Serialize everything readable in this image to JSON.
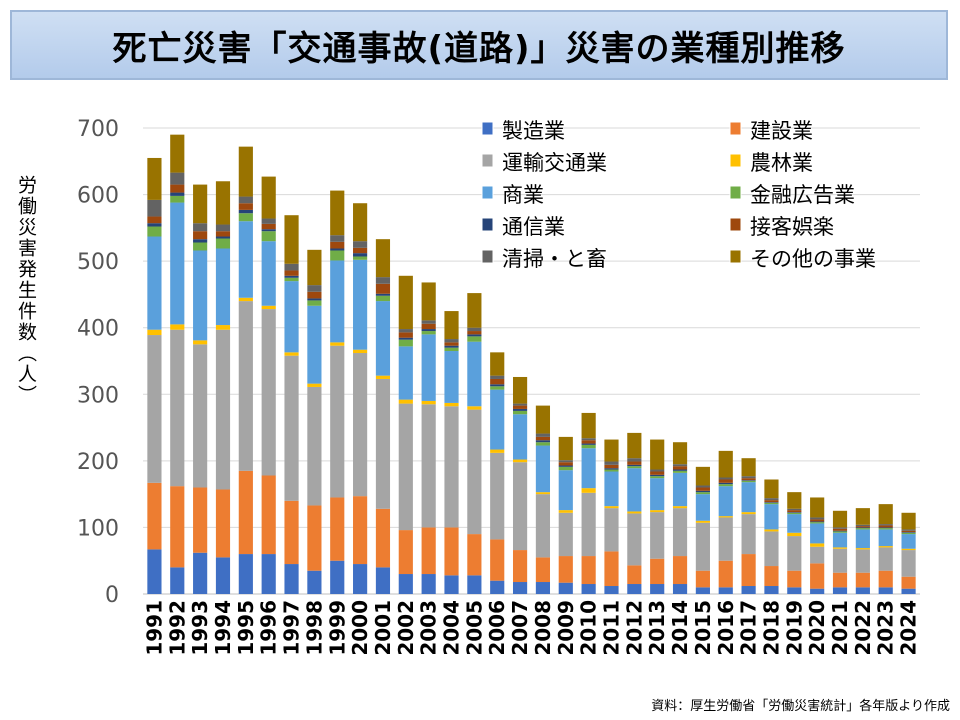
{
  "title": "死亡災害「交通事故(道路)」災害の業種別推移",
  "source_note": "資料：厚生労働省「労働災害統計」各年版より作成",
  "chart_data": {
    "type": "bar",
    "stacked": true,
    "title": "死亡災害「交通事故(道路)」災害の業種別推移",
    "ylabel": "労働災害発生件数（人）",
    "xlabel": "",
    "ylim": [
      0,
      700
    ],
    "yticks": [
      0,
      100,
      200,
      300,
      400,
      500,
      600,
      700
    ],
    "legend_position": "top-right",
    "categories": [
      "1991",
      "1992",
      "1993",
      "1994",
      "1995",
      "1996",
      "1997",
      "1998",
      "1999",
      "2000",
      "2001",
      "2002",
      "2003",
      "2004",
      "2005",
      "2006",
      "2007",
      "2008",
      "2009",
      "2010",
      "2011",
      "2012",
      "2013",
      "2014",
      "2015",
      "2016",
      "2017",
      "2018",
      "2019",
      "2020",
      "2021",
      "2022",
      "2023",
      "2024"
    ],
    "series": [
      {
        "name": "製造業",
        "color": "#3f6fc4",
        "values": [
          67,
          40,
          62,
          55,
          60,
          60,
          45,
          35,
          50,
          45,
          40,
          30,
          30,
          28,
          28,
          20,
          18,
          18,
          17,
          15,
          12,
          15,
          15,
          15,
          10,
          10,
          12,
          12,
          10,
          8,
          10,
          10,
          10,
          8
        ]
      },
      {
        "name": "建設業",
        "color": "#ed7d31",
        "values": [
          100,
          122,
          98,
          102,
          125,
          118,
          95,
          98,
          95,
          102,
          88,
          66,
          70,
          72,
          62,
          62,
          48,
          37,
          40,
          42,
          52,
          28,
          38,
          42,
          25,
          40,
          48,
          30,
          25,
          38,
          22,
          22,
          25,
          18
        ]
      },
      {
        "name": "運輸交通業",
        "color": "#a5a5a5",
        "values": [
          222,
          235,
          215,
          240,
          255,
          250,
          218,
          178,
          228,
          215,
          195,
          190,
          185,
          182,
          187,
          130,
          132,
          95,
          65,
          95,
          65,
          78,
          70,
          72,
          72,
          65,
          60,
          52,
          52,
          25,
          36,
          35,
          35,
          40
        ]
      },
      {
        "name": "農林業",
        "color": "#ffc000",
        "values": [
          8,
          8,
          6,
          7,
          5,
          5,
          5,
          5,
          5,
          5,
          5,
          6,
          5,
          5,
          5,
          5,
          4,
          3,
          4,
          7,
          3,
          3,
          3,
          3,
          3,
          2,
          3,
          3,
          5,
          5,
          2,
          2,
          2,
          2
        ]
      },
      {
        "name": "商業",
        "color": "#5aa0dc",
        "values": [
          140,
          183,
          135,
          115,
          115,
          97,
          107,
          117,
          123,
          135,
          112,
          80,
          100,
          78,
          97,
          90,
          68,
          70,
          60,
          60,
          52,
          65,
          48,
          50,
          40,
          45,
          45,
          38,
          28,
          30,
          22,
          28,
          25,
          22
        ]
      },
      {
        "name": "金融広告業",
        "color": "#70ad47",
        "values": [
          15,
          10,
          12,
          15,
          12,
          15,
          5,
          8,
          15,
          5,
          8,
          10,
          5,
          5,
          8,
          5,
          5,
          5,
          5,
          5,
          3,
          3,
          3,
          3,
          3,
          3,
          2,
          2,
          2,
          2,
          2,
          2,
          2,
          2
        ]
      },
      {
        "name": "通信業",
        "color": "#264478",
        "values": [
          5,
          5,
          5,
          3,
          5,
          3,
          3,
          3,
          3,
          5,
          3,
          3,
          3,
          3,
          3,
          3,
          3,
          3,
          2,
          2,
          2,
          2,
          2,
          2,
          2,
          2,
          1,
          1,
          1,
          1,
          1,
          1,
          1,
          1
        ]
      },
      {
        "name": "接客娯楽",
        "color": "#9e480e",
        "values": [
          10,
          12,
          12,
          8,
          10,
          8,
          8,
          10,
          10,
          8,
          15,
          8,
          8,
          5,
          5,
          8,
          5,
          5,
          5,
          5,
          5,
          5,
          5,
          5,
          5,
          5,
          3,
          3,
          3,
          3,
          3,
          2,
          3,
          2
        ]
      },
      {
        "name": "清掃・と畜",
        "color": "#636363",
        "values": [
          25,
          18,
          12,
          10,
          10,
          8,
          10,
          10,
          10,
          10,
          10,
          5,
          5,
          5,
          5,
          5,
          3,
          5,
          3,
          3,
          5,
          5,
          3,
          3,
          3,
          3,
          3,
          3,
          2,
          3,
          2,
          2,
          2,
          2
        ]
      },
      {
        "name": "その他の事業",
        "color": "#997300",
        "values": [
          63,
          57,
          58,
          65,
          75,
          63,
          73,
          53,
          67,
          57,
          57,
          80,
          57,
          42,
          52,
          35,
          40,
          42,
          35,
          38,
          33,
          38,
          45,
          33,
          28,
          40,
          27,
          28,
          25,
          30,
          25,
          25,
          30,
          25
        ]
      }
    ]
  }
}
